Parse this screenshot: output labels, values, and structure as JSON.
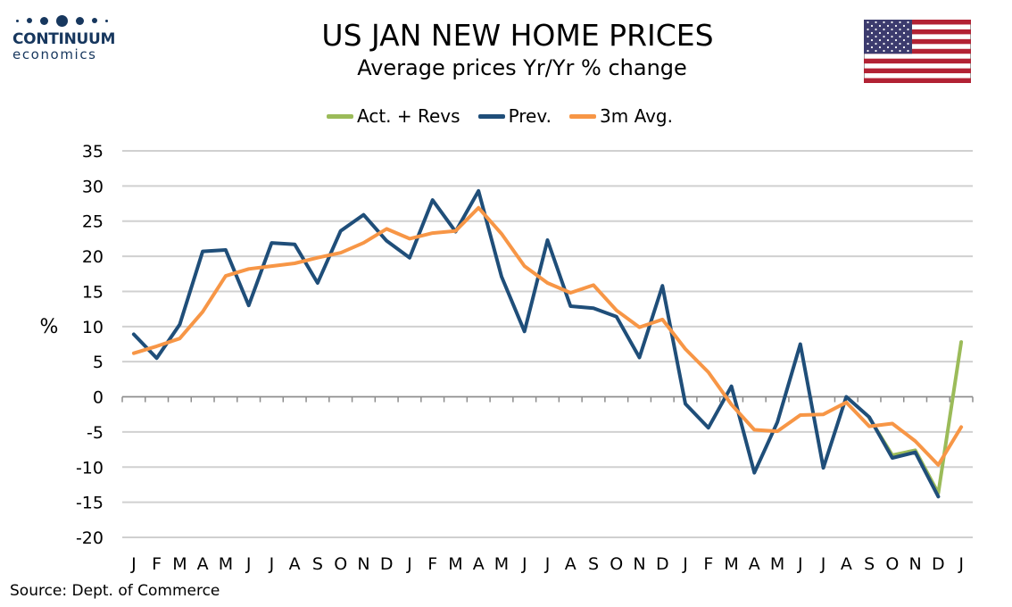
{
  "brand": {
    "name": "CONTINUUM",
    "sub": "economics",
    "color": "#17375e"
  },
  "flag_icon": "us-flag-icon",
  "chart_data": {
    "type": "line",
    "title": "US JAN NEW HOME PRICES",
    "subtitle": "Average prices Yr/Yr % change",
    "ylabel": "%",
    "xlabel": "",
    "ylim": [
      -20,
      35
    ],
    "yticks": [
      35,
      30,
      25,
      20,
      15,
      10,
      5,
      0,
      -5,
      -10,
      -15,
      -20
    ],
    "grid": true,
    "legend_position": "top",
    "categories": [
      "J",
      "F",
      "M",
      "A",
      "M",
      "J",
      "J",
      "A",
      "S",
      "O",
      "N",
      "D",
      "J",
      "F",
      "M",
      "A",
      "M",
      "J",
      "J",
      "A",
      "S",
      "O",
      "N",
      "D",
      "J",
      "F",
      "M",
      "A",
      "M",
      "J",
      "J",
      "A",
      "S",
      "O",
      "N",
      "D",
      "J"
    ],
    "series": [
      {
        "name": "Act. + Revs",
        "color": "#9bbb59",
        "values": [
          null,
          null,
          null,
          null,
          null,
          null,
          null,
          null,
          null,
          null,
          null,
          null,
          null,
          null,
          null,
          null,
          null,
          null,
          null,
          null,
          null,
          null,
          null,
          null,
          null,
          null,
          null,
          null,
          null,
          null,
          null,
          null,
          -3.0,
          -8.3,
          -7.6,
          -13.7,
          7.8
        ]
      },
      {
        "name": "Prev.",
        "color": "#1f4e79",
        "values": [
          8.9,
          5.5,
          10.3,
          20.7,
          20.9,
          13.0,
          21.9,
          21.7,
          16.2,
          23.6,
          25.9,
          22.2,
          19.8,
          28.0,
          23.5,
          29.3,
          17.1,
          9.3,
          22.3,
          12.9,
          12.6,
          11.4,
          5.6,
          15.8,
          -1.0,
          -4.4,
          1.5,
          -10.8,
          -3.6,
          7.5,
          -10.1,
          0.0,
          -2.9,
          -8.7,
          -7.9,
          -14.2,
          null
        ]
      },
      {
        "name": "3m Avg.",
        "color": "#f79646",
        "values": [
          6.2,
          7.2,
          8.3,
          12.1,
          17.2,
          18.2,
          18.6,
          19.0,
          19.8,
          20.5,
          21.9,
          23.9,
          22.5,
          23.3,
          23.6,
          26.9,
          23.2,
          18.6,
          16.2,
          14.8,
          15.9,
          12.3,
          9.9,
          11.0,
          6.8,
          3.5,
          -1.1,
          -4.7,
          -4.9,
          -2.6,
          -2.5,
          -0.8,
          -4.2,
          -3.8,
          -6.3,
          -9.7,
          -4.3
        ]
      }
    ]
  },
  "source": "Source: Dept. of Commerce"
}
